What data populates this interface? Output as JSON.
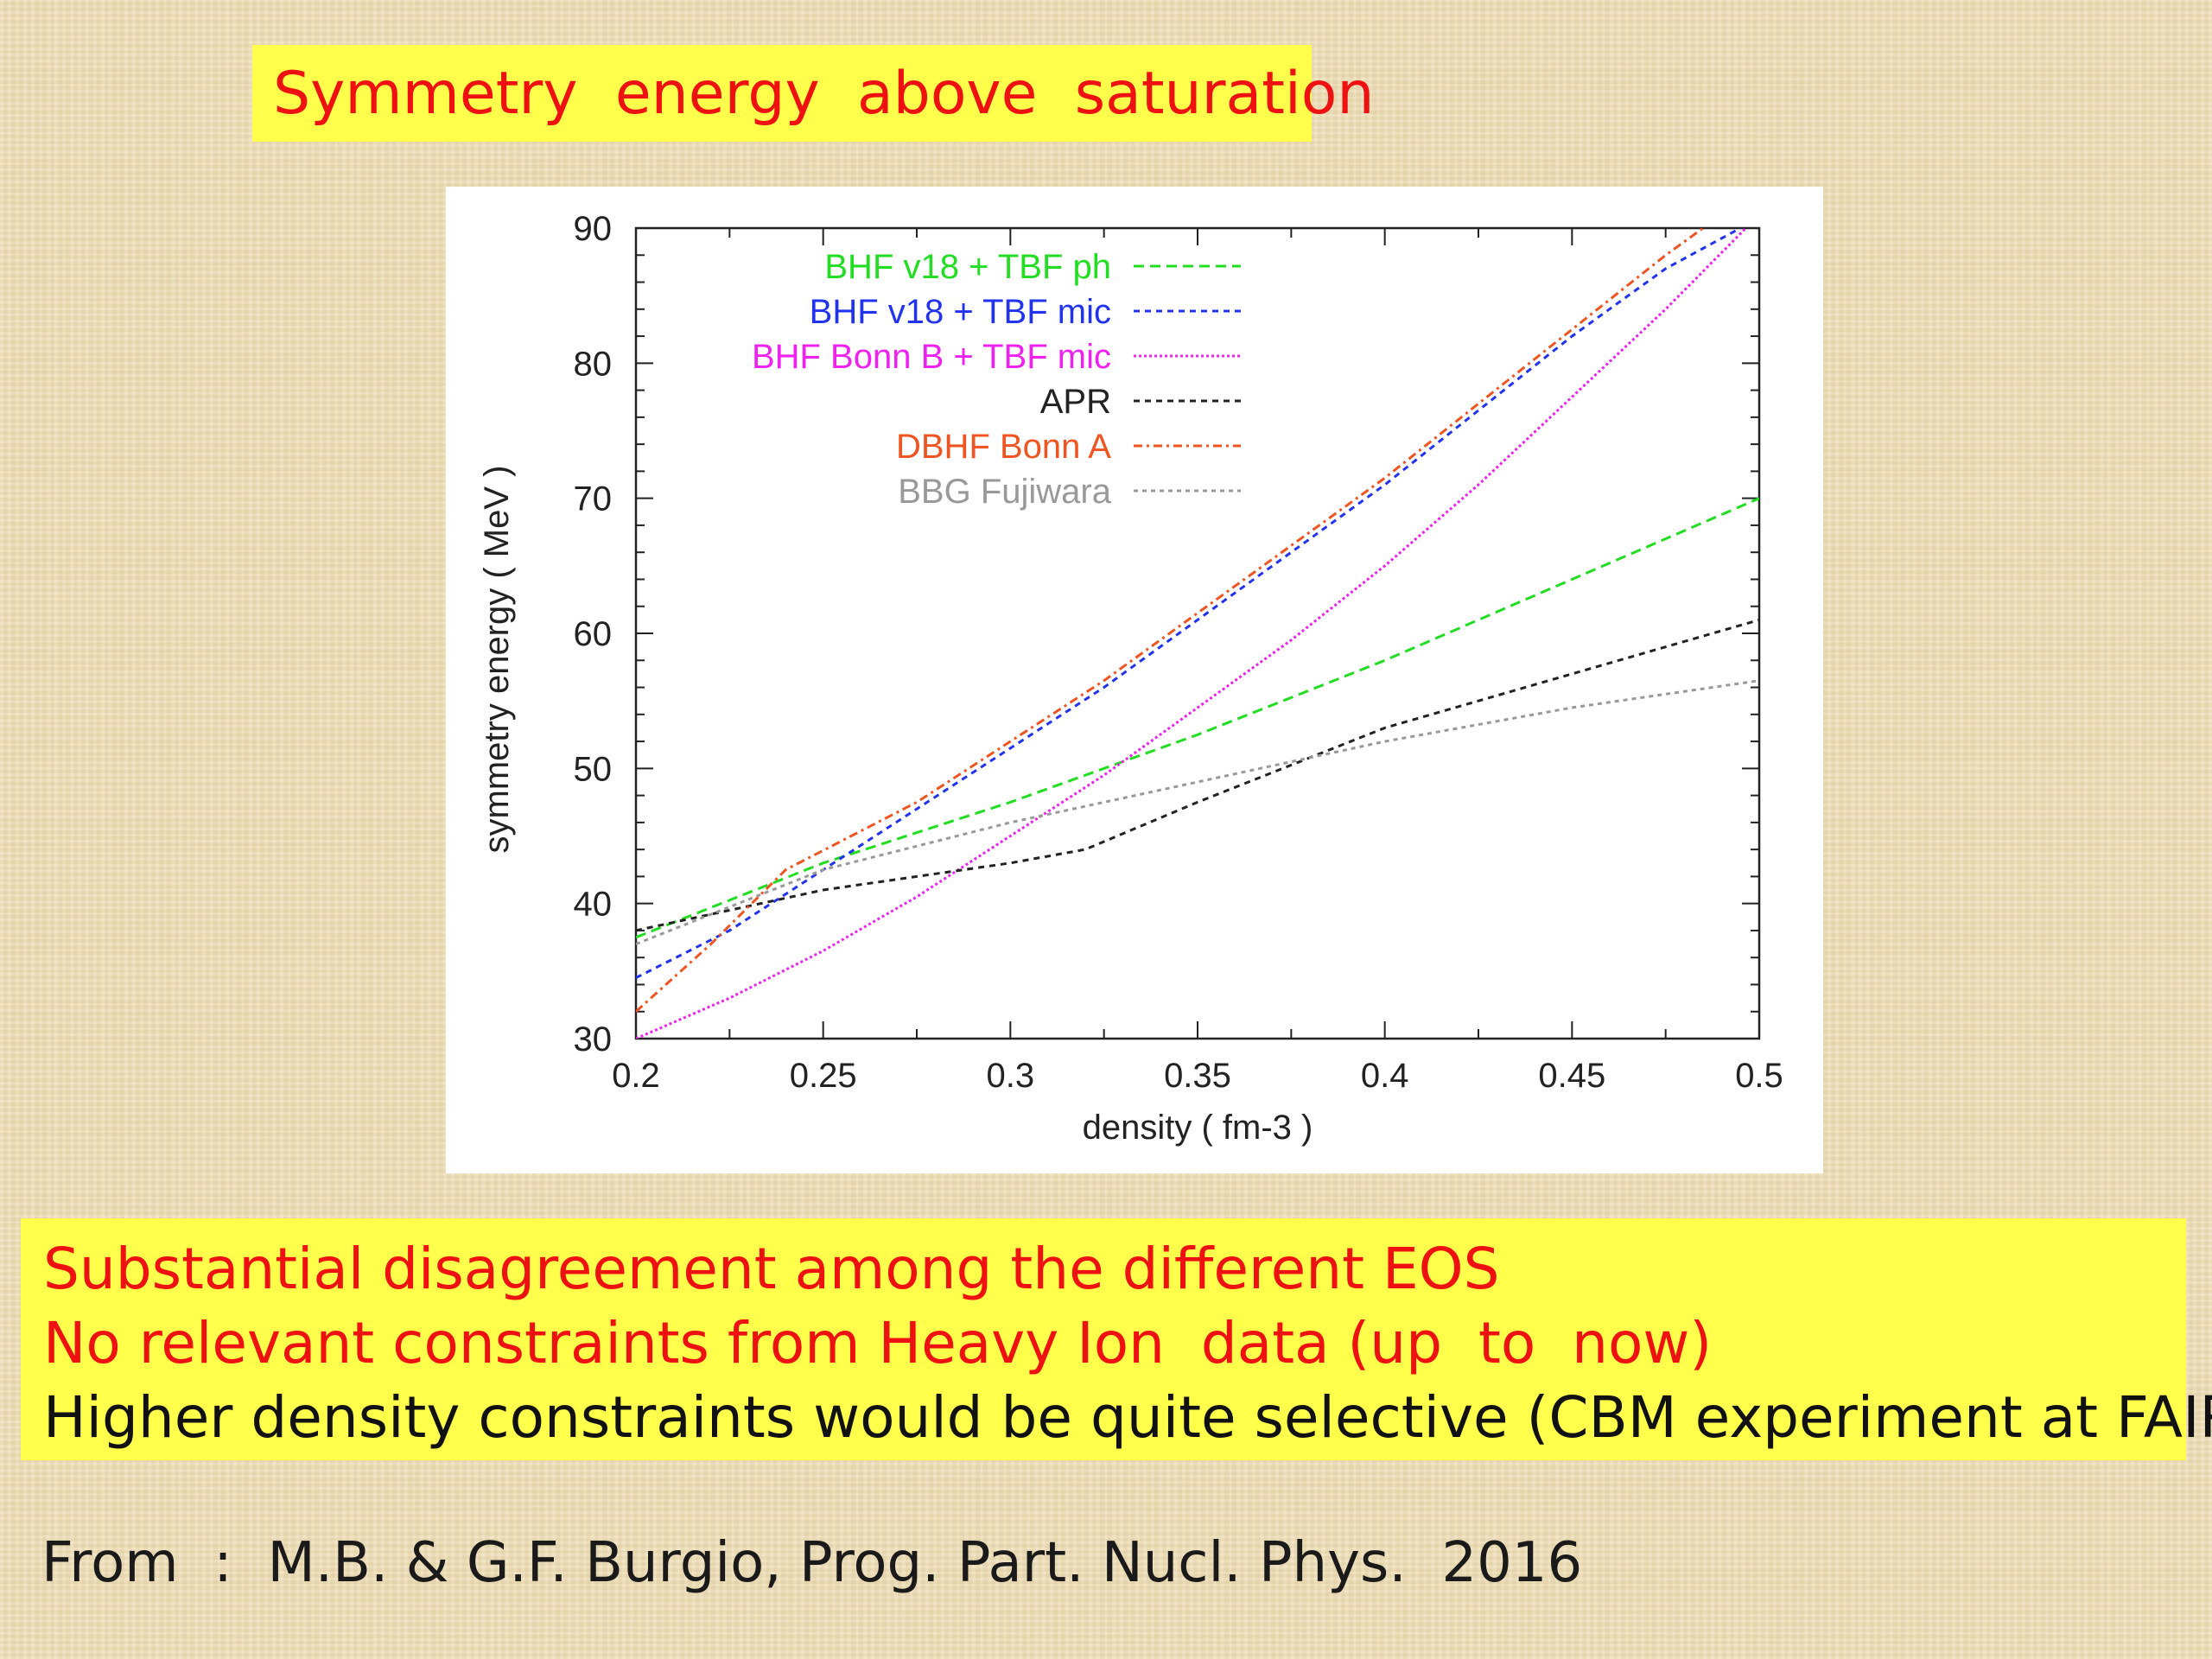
{
  "slide": {
    "title": "Symmetry  energy  above  saturation",
    "notes": [
      {
        "text": "Substantial disagreement among the different EOS",
        "color": "#ee1111"
      },
      {
        "text": "No relevant constraints from Heavy Ion  data (up  to  now)",
        "color": "#ee1111"
      },
      {
        "text": "Higher density constraints would be quite selective (CBM experiment at FAIR)",
        "color": "#111111"
      }
    ],
    "source": "From  :  M.B. & G.F. Burgio, Prog. Part. Nucl. Phys.  2016"
  },
  "chart_data": {
    "type": "line",
    "title": "",
    "xlabel": "density  ( fm-3 )",
    "ylabel": "symmetry energy ( MeV )",
    "xlim": [
      0.2,
      0.5
    ],
    "ylim": [
      30,
      90
    ],
    "xticks": [
      "0.2",
      "0.25",
      "0.3",
      "0.35",
      "0.4",
      "0.45",
      "0.5"
    ],
    "yticks": [
      "30",
      "40",
      "50",
      "60",
      "70",
      "80",
      "90"
    ],
    "legend_position": "top-left",
    "series": [
      {
        "name": "BHF v18 + TBF ph",
        "color": "#22dd22",
        "dash": "12,7",
        "points": [
          [
            0.2,
            37.5
          ],
          [
            0.25,
            43
          ],
          [
            0.3,
            47.5
          ],
          [
            0.35,
            52.5
          ],
          [
            0.4,
            58
          ],
          [
            0.45,
            64
          ],
          [
            0.5,
            70
          ]
        ]
      },
      {
        "name": "BHF v18 + TBF mic",
        "color": "#2233ee",
        "dash": "7,6",
        "points": [
          [
            0.2,
            34.5
          ],
          [
            0.225,
            38
          ],
          [
            0.25,
            42.5
          ],
          [
            0.275,
            47
          ],
          [
            0.3,
            51.5
          ],
          [
            0.325,
            56
          ],
          [
            0.35,
            61
          ],
          [
            0.375,
            66
          ],
          [
            0.4,
            71
          ],
          [
            0.425,
            76.5
          ],
          [
            0.45,
            82
          ],
          [
            0.475,
            87
          ],
          [
            0.495,
            90
          ]
        ]
      },
      {
        "name": "BHF Bonn B + TBF mic",
        "color": "#ee22ee",
        "dash": "3,3",
        "points": [
          [
            0.2,
            30
          ],
          [
            0.225,
            33
          ],
          [
            0.25,
            36.5
          ],
          [
            0.275,
            40.5
          ],
          [
            0.3,
            45
          ],
          [
            0.325,
            49.5
          ],
          [
            0.35,
            54.5
          ],
          [
            0.375,
            59.5
          ],
          [
            0.4,
            65
          ],
          [
            0.425,
            71
          ],
          [
            0.45,
            77.5
          ],
          [
            0.475,
            84
          ],
          [
            0.5,
            91
          ]
        ]
      },
      {
        "name": "APR",
        "color": "#222222",
        "dash": "7,6",
        "points": [
          [
            0.2,
            38
          ],
          [
            0.25,
            41
          ],
          [
            0.3,
            43
          ],
          [
            0.32,
            44
          ],
          [
            0.35,
            47.5
          ],
          [
            0.4,
            53
          ],
          [
            0.45,
            57
          ],
          [
            0.5,
            61
          ]
        ]
      },
      {
        "name": "DBHF Bonn A",
        "color": "#ee5522",
        "dash": "10,5,3,5",
        "points": [
          [
            0.2,
            32
          ],
          [
            0.22,
            37
          ],
          [
            0.24,
            42.5
          ],
          [
            0.275,
            47.5
          ],
          [
            0.3,
            52
          ],
          [
            0.325,
            56.5
          ],
          [
            0.35,
            61.5
          ],
          [
            0.375,
            66.5
          ],
          [
            0.4,
            71.5
          ],
          [
            0.425,
            77
          ],
          [
            0.45,
            82.5
          ],
          [
            0.475,
            88
          ],
          [
            0.49,
            91
          ]
        ]
      },
      {
        "name": "BBG Fujiwara",
        "color": "#999999",
        "dash": "5,5",
        "points": [
          [
            0.2,
            37
          ],
          [
            0.25,
            42.5
          ],
          [
            0.3,
            46
          ],
          [
            0.35,
            49
          ],
          [
            0.4,
            52
          ],
          [
            0.45,
            54.5
          ],
          [
            0.5,
            56.5
          ]
        ]
      }
    ]
  }
}
